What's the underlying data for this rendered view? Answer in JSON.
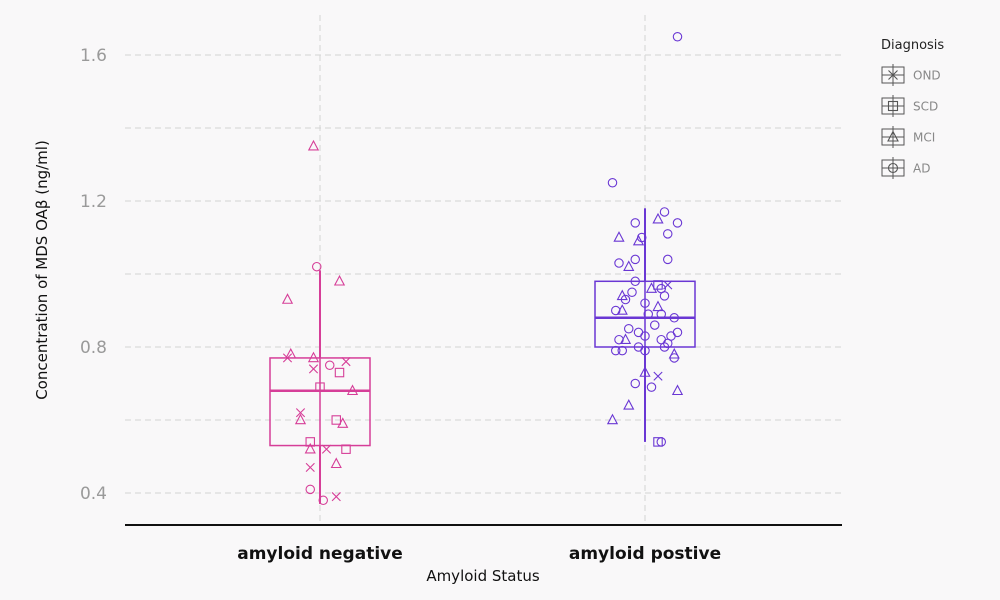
{
  "chart_data": {
    "type": "box",
    "xlabel": "Amyloid Status",
    "ylabel": "Concentration of MDS OAβ (ng/ml)",
    "categories": [
      "amyloid negative",
      "amyloid postive"
    ],
    "ylim": [
      0.36,
      1.68
    ],
    "yticks": [
      0.4,
      0.8,
      1.2,
      1.6
    ],
    "y_tick_labels": [
      "0.4",
      "0.8",
      "1.2",
      "1.6"
    ],
    "grid": true,
    "legend": {
      "title": "Diagnosis",
      "position": "right",
      "entries": [
        {
          "label": "OND",
          "marker": "x"
        },
        {
          "label": "SCD",
          "marker": "square"
        },
        {
          "label": "MCI",
          "marker": "triangle"
        },
        {
          "label": "AD",
          "marker": "circle"
        }
      ]
    },
    "colors": {
      "amyloid negative": "#d63e98",
      "amyloid postive": "#6a37d4",
      "grid": "#d4d4d4",
      "axis": "#111111",
      "background": "#f9f8f9"
    },
    "boxes": [
      {
        "category": "amyloid negative",
        "whisker_low": 0.37,
        "q1": 0.53,
        "median": 0.68,
        "q3": 0.77,
        "whisker_high": 1.01
      },
      {
        "category": "amyloid postive",
        "whisker_low": 0.54,
        "q1": 0.8,
        "median": 0.88,
        "q3": 0.98,
        "whisker_high": 1.18
      }
    ],
    "points": [
      {
        "category": "amyloid negative",
        "diagnosis": "MCI",
        "x": -0.02,
        "y": 1.35
      },
      {
        "category": "amyloid negative",
        "diagnosis": "AD",
        "x": -0.01,
        "y": 1.02
      },
      {
        "category": "amyloid negative",
        "diagnosis": "MCI",
        "x": 0.06,
        "y": 0.98
      },
      {
        "category": "amyloid negative",
        "diagnosis": "MCI",
        "x": -0.1,
        "y": 0.93
      },
      {
        "category": "amyloid negative",
        "diagnosis": "MCI",
        "x": -0.09,
        "y": 0.78
      },
      {
        "category": "amyloid negative",
        "diagnosis": "OND",
        "x": -0.1,
        "y": 0.77
      },
      {
        "category": "amyloid negative",
        "diagnosis": "MCI",
        "x": -0.02,
        "y": 0.77
      },
      {
        "category": "amyloid negative",
        "diagnosis": "OND",
        "x": 0.08,
        "y": 0.76
      },
      {
        "category": "amyloid negative",
        "diagnosis": "AD",
        "x": 0.03,
        "y": 0.75
      },
      {
        "category": "amyloid negative",
        "diagnosis": "OND",
        "x": -0.02,
        "y": 0.74
      },
      {
        "category": "amyloid negative",
        "diagnosis": "SCD",
        "x": 0.06,
        "y": 0.73
      },
      {
        "category": "amyloid negative",
        "diagnosis": "SCD",
        "x": 0.0,
        "y": 0.69
      },
      {
        "category": "amyloid negative",
        "diagnosis": "MCI",
        "x": 0.1,
        "y": 0.68
      },
      {
        "category": "amyloid negative",
        "diagnosis": "OND",
        "x": -0.06,
        "y": 0.62
      },
      {
        "category": "amyloid negative",
        "diagnosis": "MCI",
        "x": -0.06,
        "y": 0.6
      },
      {
        "category": "amyloid negative",
        "diagnosis": "SCD",
        "x": 0.05,
        "y": 0.6
      },
      {
        "category": "amyloid negative",
        "diagnosis": "MCI",
        "x": 0.07,
        "y": 0.59
      },
      {
        "category": "amyloid negative",
        "diagnosis": "SCD",
        "x": -0.03,
        "y": 0.54
      },
      {
        "category": "amyloid negative",
        "diagnosis": "MCI",
        "x": -0.03,
        "y": 0.52
      },
      {
        "category": "amyloid negative",
        "diagnosis": "OND",
        "x": 0.02,
        "y": 0.52
      },
      {
        "category": "amyloid negative",
        "diagnosis": "SCD",
        "x": 0.08,
        "y": 0.52
      },
      {
        "category": "amyloid negative",
        "diagnosis": "MCI",
        "x": 0.05,
        "y": 0.48
      },
      {
        "category": "amyloid negative",
        "diagnosis": "OND",
        "x": -0.03,
        "y": 0.47
      },
      {
        "category": "amyloid negative",
        "diagnosis": "AD",
        "x": -0.03,
        "y": 0.41
      },
      {
        "category": "amyloid negative",
        "diagnosis": "OND",
        "x": 0.05,
        "y": 0.39
      },
      {
        "category": "amyloid negative",
        "diagnosis": "AD",
        "x": 0.01,
        "y": 0.38
      },
      {
        "category": "amyloid postive",
        "diagnosis": "AD",
        "x": 0.1,
        "y": 1.65
      },
      {
        "category": "amyloid postive",
        "diagnosis": "AD",
        "x": -0.1,
        "y": 1.25
      },
      {
        "category": "amyloid postive",
        "diagnosis": "AD",
        "x": 0.06,
        "y": 1.17
      },
      {
        "category": "amyloid postive",
        "diagnosis": "MCI",
        "x": 0.04,
        "y": 1.15
      },
      {
        "category": "amyloid postive",
        "diagnosis": "AD",
        "x": -0.03,
        "y": 1.14
      },
      {
        "category": "amyloid postive",
        "diagnosis": "AD",
        "x": 0.1,
        "y": 1.14
      },
      {
        "category": "amyloid postive",
        "diagnosis": "AD",
        "x": 0.07,
        "y": 1.11
      },
      {
        "category": "amyloid postive",
        "diagnosis": "MCI",
        "x": -0.08,
        "y": 1.1
      },
      {
        "category": "amyloid postive",
        "diagnosis": "AD",
        "x": -0.01,
        "y": 1.1
      },
      {
        "category": "amyloid postive",
        "diagnosis": "MCI",
        "x": -0.02,
        "y": 1.09
      },
      {
        "category": "amyloid postive",
        "diagnosis": "AD",
        "x": 0.07,
        "y": 1.04
      },
      {
        "category": "amyloid postive",
        "diagnosis": "AD",
        "x": -0.03,
        "y": 1.04
      },
      {
        "category": "amyloid postive",
        "diagnosis": "AD",
        "x": -0.08,
        "y": 1.03
      },
      {
        "category": "amyloid postive",
        "diagnosis": "MCI",
        "x": -0.05,
        "y": 1.02
      },
      {
        "category": "amyloid postive",
        "diagnosis": "AD",
        "x": -0.03,
        "y": 0.98
      },
      {
        "category": "amyloid postive",
        "diagnosis": "OND",
        "x": 0.07,
        "y": 0.97
      },
      {
        "category": "amyloid postive",
        "diagnosis": "SCD",
        "x": 0.04,
        "y": 0.97
      },
      {
        "category": "amyloid postive",
        "diagnosis": "AD",
        "x": 0.05,
        "y": 0.96
      },
      {
        "category": "amyloid postive",
        "diagnosis": "MCI",
        "x": 0.02,
        "y": 0.96
      },
      {
        "category": "amyloid postive",
        "diagnosis": "AD",
        "x": -0.04,
        "y": 0.95
      },
      {
        "category": "amyloid postive",
        "diagnosis": "AD",
        "x": 0.06,
        "y": 0.94
      },
      {
        "category": "amyloid postive",
        "diagnosis": "MCI",
        "x": -0.07,
        "y": 0.94
      },
      {
        "category": "amyloid postive",
        "diagnosis": "AD",
        "x": -0.06,
        "y": 0.93
      },
      {
        "category": "amyloid postive",
        "diagnosis": "AD",
        "x": 0.0,
        "y": 0.92
      },
      {
        "category": "amyloid postive",
        "diagnosis": "MCI",
        "x": 0.04,
        "y": 0.91
      },
      {
        "category": "amyloid postive",
        "diagnosis": "AD",
        "x": -0.09,
        "y": 0.9
      },
      {
        "category": "amyloid postive",
        "diagnosis": "MCI",
        "x": -0.07,
        "y": 0.9
      },
      {
        "category": "amyloid postive",
        "diagnosis": "AD",
        "x": 0.01,
        "y": 0.89
      },
      {
        "category": "amyloid postive",
        "diagnosis": "AD",
        "x": 0.05,
        "y": 0.89
      },
      {
        "category": "amyloid postive",
        "diagnosis": "AD",
        "x": 0.09,
        "y": 0.88
      },
      {
        "category": "amyloid postive",
        "diagnosis": "AD",
        "x": 0.03,
        "y": 0.86
      },
      {
        "category": "amyloid postive",
        "diagnosis": "AD",
        "x": -0.05,
        "y": 0.85
      },
      {
        "category": "amyloid postive",
        "diagnosis": "AD",
        "x": -0.02,
        "y": 0.84
      },
      {
        "category": "amyloid postive",
        "diagnosis": "AD",
        "x": 0.1,
        "y": 0.84
      },
      {
        "category": "amyloid postive",
        "diagnosis": "AD",
        "x": 0.0,
        "y": 0.83
      },
      {
        "category": "amyloid postive",
        "diagnosis": "AD",
        "x": 0.08,
        "y": 0.83
      },
      {
        "category": "amyloid postive",
        "diagnosis": "AD",
        "x": -0.08,
        "y": 0.82
      },
      {
        "category": "amyloid postive",
        "diagnosis": "MCI",
        "x": -0.06,
        "y": 0.82
      },
      {
        "category": "amyloid postive",
        "diagnosis": "AD",
        "x": 0.05,
        "y": 0.82
      },
      {
        "category": "amyloid postive",
        "diagnosis": "AD",
        "x": 0.07,
        "y": 0.81
      },
      {
        "category": "amyloid postive",
        "diagnosis": "AD",
        "x": -0.02,
        "y": 0.8
      },
      {
        "category": "amyloid postive",
        "diagnosis": "AD",
        "x": 0.06,
        "y": 0.8
      },
      {
        "category": "amyloid postive",
        "diagnosis": "AD",
        "x": -0.07,
        "y": 0.79
      },
      {
        "category": "amyloid postive",
        "diagnosis": "AD",
        "x": -0.09,
        "y": 0.79
      },
      {
        "category": "amyloid postive",
        "diagnosis": "AD",
        "x": 0.0,
        "y": 0.79
      },
      {
        "category": "amyloid postive",
        "diagnosis": "MCI",
        "x": 0.09,
        "y": 0.78
      },
      {
        "category": "amyloid postive",
        "diagnosis": "AD",
        "x": 0.09,
        "y": 0.77
      },
      {
        "category": "amyloid postive",
        "diagnosis": "MCI",
        "x": 0.0,
        "y": 0.73
      },
      {
        "category": "amyloid postive",
        "diagnosis": "OND",
        "x": 0.04,
        "y": 0.72
      },
      {
        "category": "amyloid postive",
        "diagnosis": "AD",
        "x": -0.03,
        "y": 0.7
      },
      {
        "category": "amyloid postive",
        "diagnosis": "AD",
        "x": 0.02,
        "y": 0.69
      },
      {
        "category": "amyloid postive",
        "diagnosis": "MCI",
        "x": 0.1,
        "y": 0.68
      },
      {
        "category": "amyloid postive",
        "diagnosis": "MCI",
        "x": -0.05,
        "y": 0.64
      },
      {
        "category": "amyloid postive",
        "diagnosis": "MCI",
        "x": -0.1,
        "y": 0.6
      },
      {
        "category": "amyloid postive",
        "diagnosis": "SCD",
        "x": 0.04,
        "y": 0.54
      },
      {
        "category": "amyloid postive",
        "diagnosis": "AD",
        "x": 0.05,
        "y": 0.54
      }
    ]
  }
}
